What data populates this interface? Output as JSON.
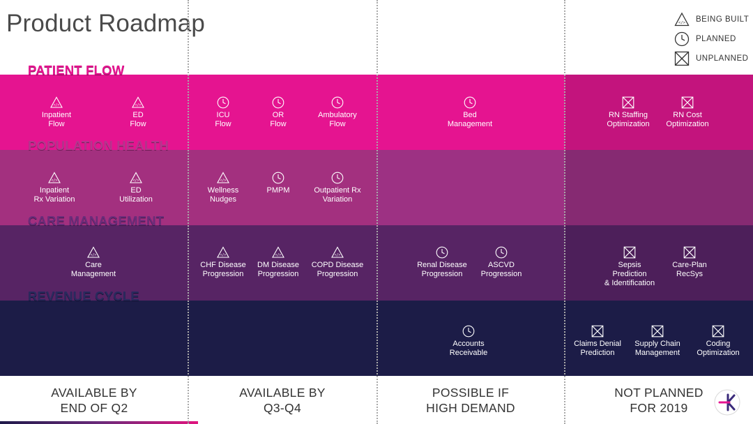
{
  "title": "Product Roadmap",
  "legend": {
    "being_built": "BEING BUILT",
    "planned": "PLANNED",
    "unplanned": "UNPLANNED"
  },
  "colors": {
    "patient_flow": "#e51490",
    "population_health": "#a3307f",
    "care_management": "#572464",
    "revenue_cycle": "#1c1c47"
  },
  "bands": [
    {
      "title": "PATIENT FLOW",
      "items": [
        {
          "icon": "being-built-icon",
          "l1": "Inpatient",
          "l2": "Flow"
        },
        {
          "icon": "being-built-icon",
          "l1": "ED",
          "l2": "Flow"
        },
        {
          "icon": "planned-icon",
          "l1": "ICU",
          "l2": "Flow"
        },
        {
          "icon": "planned-icon",
          "l1": "OR",
          "l2": "Flow"
        },
        {
          "icon": "planned-icon",
          "l1": "Ambulatory",
          "l2": "Flow"
        },
        {
          "icon": "planned-icon",
          "l1": "Bed",
          "l2": "Management"
        },
        {
          "icon": "unplanned-icon",
          "l1": "RN Staffing",
          "l2": "Optimization"
        },
        {
          "icon": "unplanned-icon",
          "l1": "RN Cost",
          "l2": "Optimization"
        }
      ]
    },
    {
      "title": "POPULATION HEALTH",
      "items": [
        {
          "icon": "being-built-icon",
          "l1": "Inpatient",
          "l2": "Rx Variation"
        },
        {
          "icon": "being-built-icon",
          "l1": "ED",
          "l2": "Utilization"
        },
        {
          "icon": "being-built-icon",
          "l1": "Wellness",
          "l2": "Nudges"
        },
        {
          "icon": "planned-icon",
          "l1": "PMPM",
          "l2": ""
        },
        {
          "icon": "planned-icon",
          "l1": "Outpatient Rx",
          "l2": "Variation"
        }
      ]
    },
    {
      "title": "CARE MANAGEMENT",
      "items": [
        {
          "icon": "being-built-icon",
          "l1": "Care",
          "l2": "Management"
        },
        {
          "icon": "being-built-icon",
          "l1": "CHF Disease",
          "l2": "Progression"
        },
        {
          "icon": "being-built-icon",
          "l1": "DM Disease",
          "l2": "Progression"
        },
        {
          "icon": "being-built-icon",
          "l1": "COPD Disease",
          "l2": "Progression"
        },
        {
          "icon": "planned-icon",
          "l1": "Renal Disease",
          "l2": "Progression"
        },
        {
          "icon": "planned-icon",
          "l1": "ASCVD",
          "l2": "Progression"
        },
        {
          "icon": "unplanned-icon",
          "l1": "Sepsis",
          "l2": "Prediction",
          "l3": "& Identification"
        },
        {
          "icon": "unplanned-icon",
          "l1": "Care-Plan",
          "l2": "RecSys"
        }
      ]
    },
    {
      "title": "REVENUE CYCLE",
      "items": [
        {
          "icon": "planned-icon",
          "l1": "Accounts",
          "l2": "Receivable"
        },
        {
          "icon": "unplanned-icon",
          "l1": "Claims Denial",
          "l2": "Prediction"
        },
        {
          "icon": "unplanned-icon",
          "l1": "Supply Chain",
          "l2": "Management"
        },
        {
          "icon": "unplanned-icon",
          "l1": "Coding",
          "l2": "Optimization"
        }
      ]
    }
  ],
  "columns": [
    {
      "l1": "AVAILABLE BY",
      "l2": "END OF Q2"
    },
    {
      "l1": "AVAILABLE BY",
      "l2": "Q3-Q4"
    },
    {
      "l1": "POSSIBLE IF",
      "l2": "HIGH DEMAND"
    },
    {
      "l1": "NOT PLANNED",
      "l2": "FOR 2019"
    }
  ]
}
